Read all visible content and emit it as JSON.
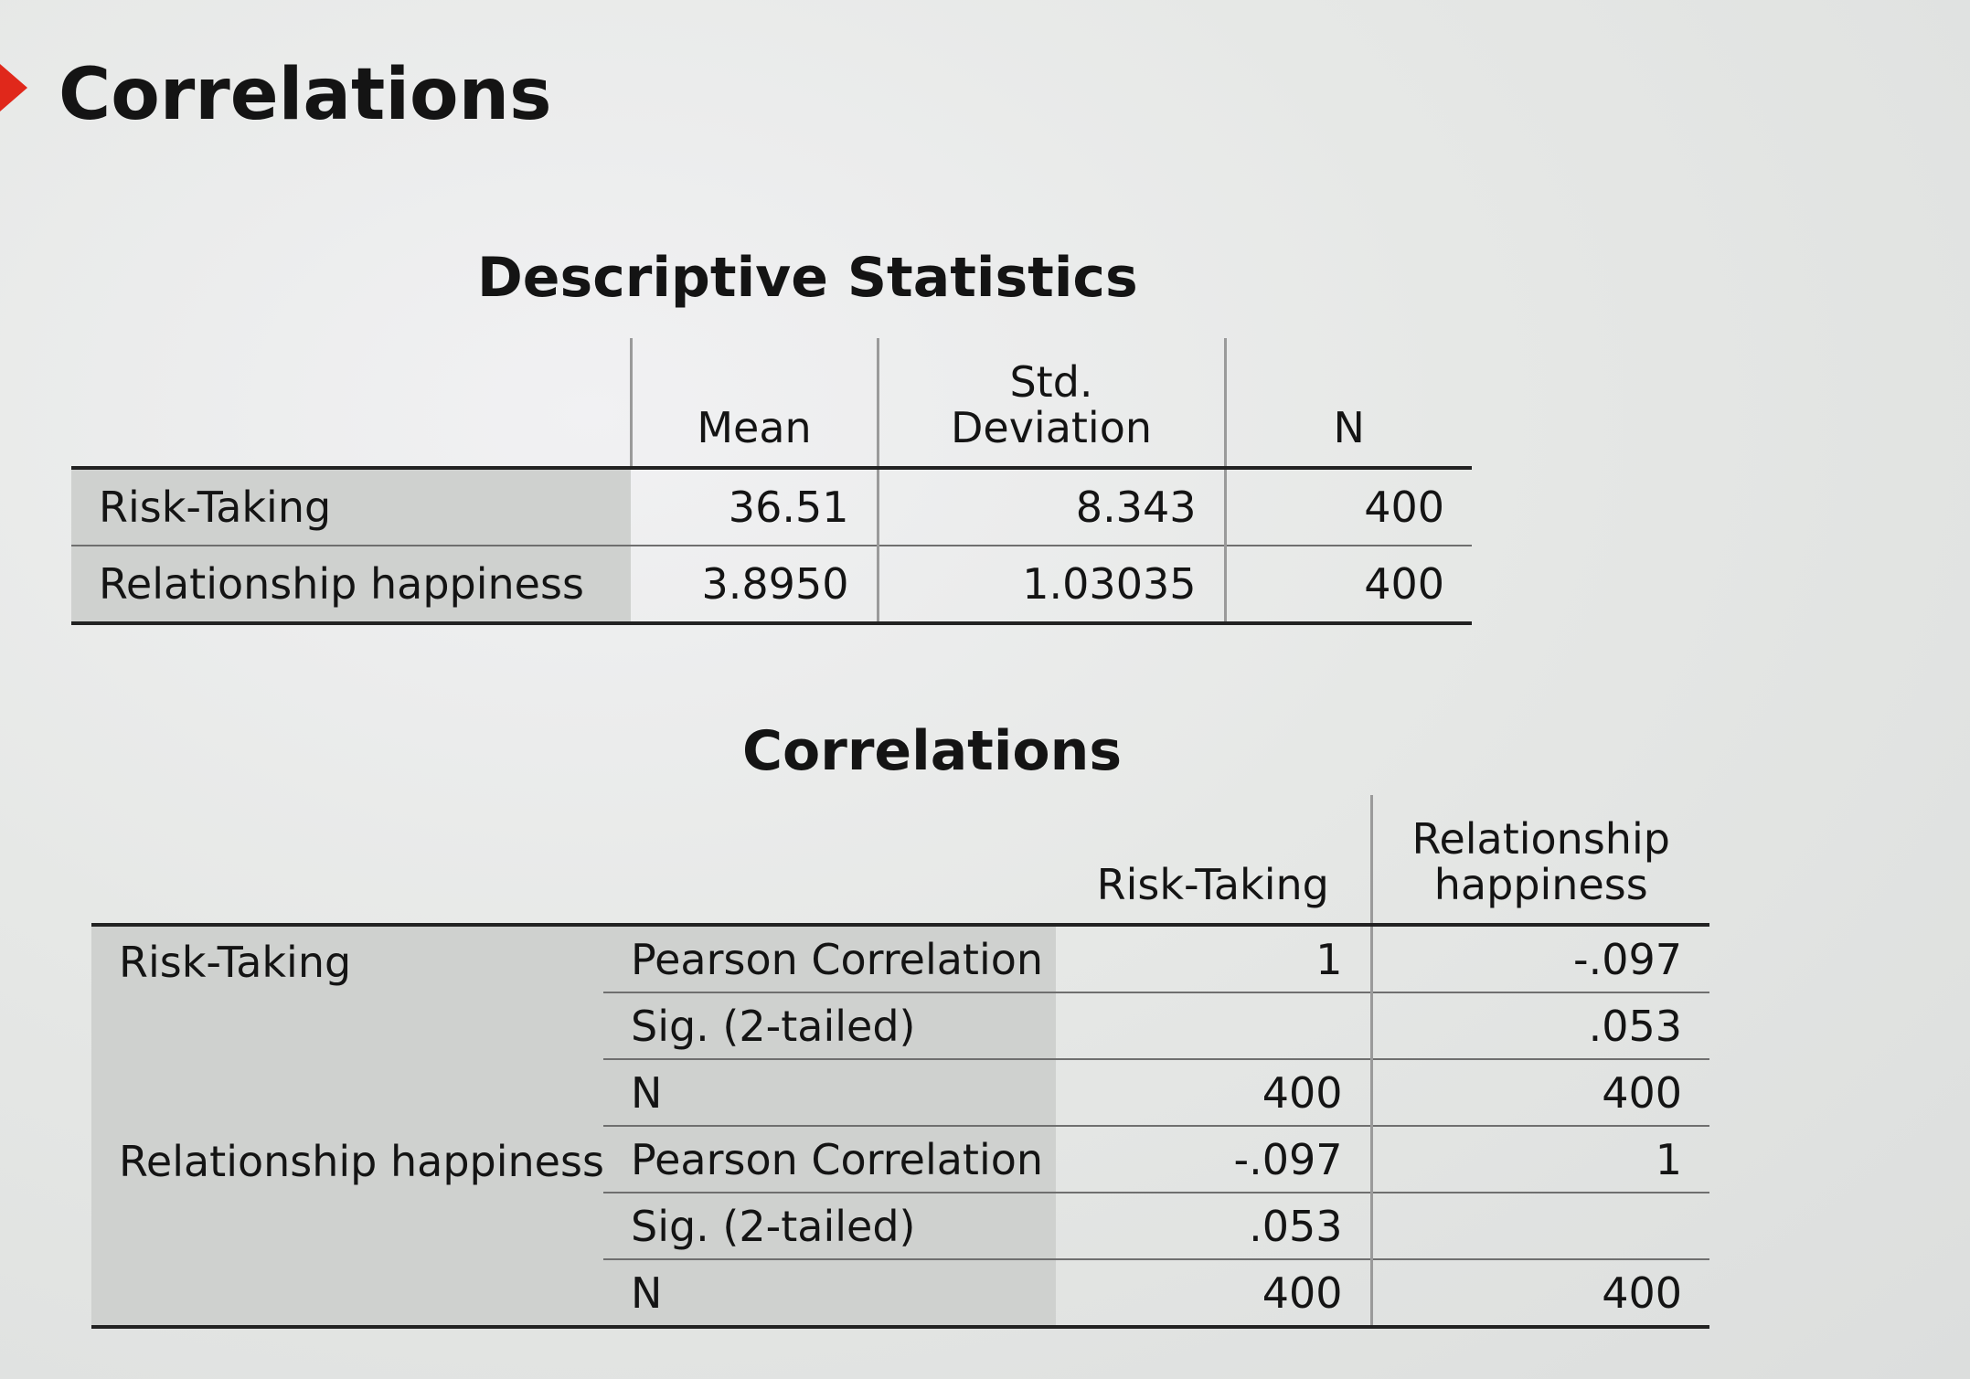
{
  "page": {
    "section_title": "Correlations"
  },
  "descriptive_statistics": {
    "title": "Descriptive Statistics",
    "headers": [
      "Mean",
      "Std. Deviation",
      "N"
    ],
    "rows": [
      {
        "label": "Risk-Taking",
        "mean": "36.51",
        "std_deviation": "8.343",
        "n": "400"
      },
      {
        "label": "Relationship happiness",
        "mean": "3.8950",
        "std_deviation": "1.03035",
        "n": "400"
      }
    ]
  },
  "correlations": {
    "title": "Correlations",
    "headers": [
      "Risk-Taking",
      "Relationship happiness"
    ],
    "groups": [
      {
        "label": "Risk-Taking",
        "rows": [
          {
            "stat": "Pearson Correlation",
            "risk_taking": "1",
            "relationship_happiness": "-.097"
          },
          {
            "stat": "Sig. (2-tailed)",
            "risk_taking": "",
            "relationship_happiness": ".053"
          },
          {
            "stat": "N",
            "risk_taking": "400",
            "relationship_happiness": "400"
          }
        ]
      },
      {
        "label": "Relationship happiness",
        "rows": [
          {
            "stat": "Pearson Correlation",
            "risk_taking": "-.097",
            "relationship_happiness": "1"
          },
          {
            "stat": "Sig. (2-tailed)",
            "risk_taking": ".053",
            "relationship_happiness": ""
          },
          {
            "stat": "N",
            "risk_taking": "400",
            "relationship_happiness": "400"
          }
        ]
      }
    ]
  },
  "colors": {
    "marker": "#e0281b",
    "row_header_shade": "#cfd1cf",
    "text": "#141414"
  }
}
